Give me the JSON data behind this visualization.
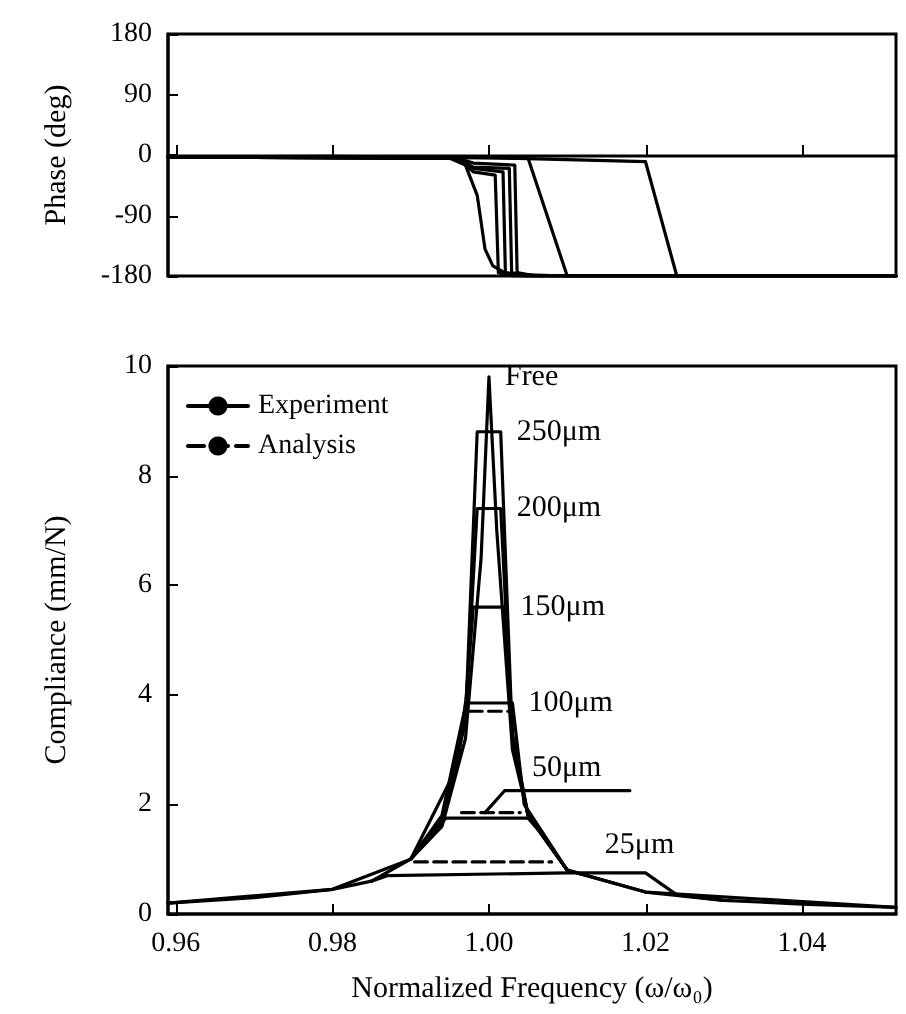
{
  "chart_data": [
    {
      "type": "line",
      "ylabel": "Phase (deg)",
      "xlim": [
        0.959,
        1.052
      ],
      "xticks": [
        0.96,
        0.98,
        1,
        1.02,
        1.04
      ],
      "ylim": [
        -180,
        180
      ],
      "yticks": [
        -180,
        -90,
        0,
        90,
        180
      ],
      "tick_labels": "y",
      "marker": "none",
      "legend": false,
      "series": [
        {
          "color": "#000000",
          "line_style": "solid",
          "x": [
            0.959,
            0.98,
            0.99,
            0.995,
            0.997,
            0.9985,
            0.9995,
            1.0005,
            1.002,
            1.004,
            1.01,
            1.052
          ],
          "values": [
            -3,
            -2,
            -3,
            -5,
            -15,
            -60,
            -140,
            -165,
            -175,
            -178,
            -180,
            -180
          ]
        },
        {
          "color": "#000000",
          "line_style": "solid",
          "x": [
            0.959,
            0.996,
            0.998,
            1.0008,
            1.0012,
            1.003,
            1.052
          ],
          "values": [
            -3,
            -5,
            -25,
            -30,
            -175,
            -180,
            -180
          ]
        },
        {
          "color": "#000000",
          "line_style": "solid",
          "x": [
            0.959,
            0.996,
            0.998,
            1.0018,
            1.0021,
            1.004,
            1.052
          ],
          "values": [
            -3,
            -5,
            -20,
            -25,
            -175,
            -180,
            -180
          ]
        },
        {
          "color": "#000000",
          "line_style": "solid",
          "x": [
            0.959,
            0.996,
            0.998,
            1.0026,
            1.0029,
            1.005,
            1.052
          ],
          "values": [
            -3,
            -5,
            -18,
            -20,
            -175,
            -180,
            -180
          ]
        },
        {
          "color": "#000000",
          "line_style": "solid",
          "x": [
            0.959,
            0.996,
            0.998,
            1.0033,
            1.0036,
            1.006,
            1.052
          ],
          "values": [
            -3,
            -5,
            -12,
            -15,
            -175,
            -180,
            -180
          ]
        },
        {
          "color": "#000000",
          "line_style": "solid",
          "x": [
            0.959,
            0.998,
            1.005,
            1.01,
            1.052
          ],
          "values": [
            -3,
            -4,
            -5,
            -180,
            -180
          ]
        },
        {
          "color": "#000000",
          "line_style": "solid",
          "x": [
            0.959,
            1.0,
            1.02,
            1.024,
            1.052
          ],
          "values": [
            -3,
            -4,
            -10,
            -180,
            -180
          ]
        }
      ]
    },
    {
      "type": "line",
      "xlabel": "Normalized Frequency (ω/ω₀)",
      "ylabel": "Compliance (mm/N)",
      "xlim": [
        0.959,
        1.052
      ],
      "xticks": [
        0.96,
        0.98,
        {
          "value": 1,
          "label": "1.00"
        },
        1.02,
        1.04
      ],
      "ylim": [
        0,
        10
      ],
      "yticks": [
        0,
        2,
        4,
        6,
        8,
        10
      ],
      "marker": "none",
      "legend": "top left",
      "series": [
        {
          "name": "Experiment",
          "color": "#000000",
          "line_style": "solid",
          "x": [
            0.959,
            0.97,
            0.98,
            0.985,
            0.99,
            0.994,
            0.997,
            0.999,
            1.0,
            1.001,
            1.003,
            1.005,
            1.01,
            1.02,
            1.03,
            1.04,
            1.052
          ],
          "values": [
            0.2,
            0.3,
            0.45,
            0.6,
            1.0,
            1.6,
            3.2,
            6.5,
            9.8,
            7,
            3,
            1.8,
            0.8,
            0.4,
            0.25,
            0.18,
            0.12
          ]
        },
        {
          "color": "#000000",
          "line_style": "solid",
          "x": [
            0.959,
            0.98,
            0.99,
            0.994,
            0.997,
            0.9985,
            1.0015,
            1.003,
            1.005,
            1.01,
            1.02,
            1.052
          ],
          "values": [
            0.2,
            0.45,
            1.0,
            1.7,
            3.5,
            8.8,
            8.8,
            3.2,
            1.8,
            0.8,
            0.4,
            0.12
          ]
        },
        {
          "color": "#000000",
          "line_style": "solid",
          "x": [
            0.99,
            0.994,
            0.997,
            0.9985,
            1.0015,
            1.003,
            1.005,
            1.01
          ],
          "values": [
            1.0,
            1.7,
            3.6,
            7.4,
            7.4,
            3.2,
            1.8,
            0.8
          ]
        },
        {
          "color": "#000000",
          "line_style": "solid",
          "x": [
            0.99,
            0.994,
            0.997,
            0.998,
            1.002,
            1.003,
            1.005,
            1.01
          ],
          "values": [
            1.0,
            1.8,
            3.8,
            5.6,
            5.6,
            3.3,
            1.8,
            0.8
          ]
        },
        {
          "color": "#000000",
          "line_style": "solid",
          "x": [
            0.99,
            0.996,
            0.997,
            1.003,
            1.0045,
            1.01
          ],
          "values": [
            1.0,
            2.7,
            3.85,
            3.85,
            2.0,
            0.8
          ]
        },
        {
          "color": "#000000",
          "line_style": "solid",
          "x": [
            0.99,
            0.9945,
            1.005,
            1.0065,
            1.01
          ],
          "values": [
            1.0,
            1.75,
            1.75,
            1.5,
            0.8
          ]
        },
        {
          "color": "#000000",
          "line_style": "solid",
          "x": [
            0.9995,
            1.002,
            1.018
          ],
          "values": [
            1.85,
            2.25,
            2.25
          ]
        },
        {
          "color": "#000000",
          "line_style": "solid",
          "x": [
            0.985,
            0.987,
            1.01,
            1.02,
            1.024,
            1.03
          ],
          "values": [
            0.6,
            0.7,
            0.75,
            0.75,
            0.35,
            0.25
          ]
        },
        {
          "name": "Analysis",
          "color": "#000000",
          "line_style": "dashed",
          "x": [
            0.9975,
            1.0025
          ],
          "values": [
            3.7,
            3.7
          ]
        },
        {
          "color": "#000000",
          "line_style": "dashed",
          "x": [
            0.9965,
            1.004
          ],
          "values": [
            1.85,
            1.85
          ]
        },
        {
          "color": "#000000",
          "line_style": "dashed",
          "x": [
            0.9905,
            1.008
          ],
          "values": [
            0.95,
            0.95
          ]
        }
      ],
      "annotations": [
        {
          "text": "Free",
          "x": 1.0,
          "y": 9.8
        },
        {
          "text": "250μm",
          "x": 1.0015,
          "y": 8.8
        },
        {
          "text": "200μm",
          "x": 1.0015,
          "y": 7.4
        },
        {
          "text": "150μm",
          "x": 1.002,
          "y": 5.6
        },
        {
          "text": "100μm",
          "x": 1.003,
          "y": 3.85
        },
        "50μm",
        "25μm"
      ]
    }
  ]
}
